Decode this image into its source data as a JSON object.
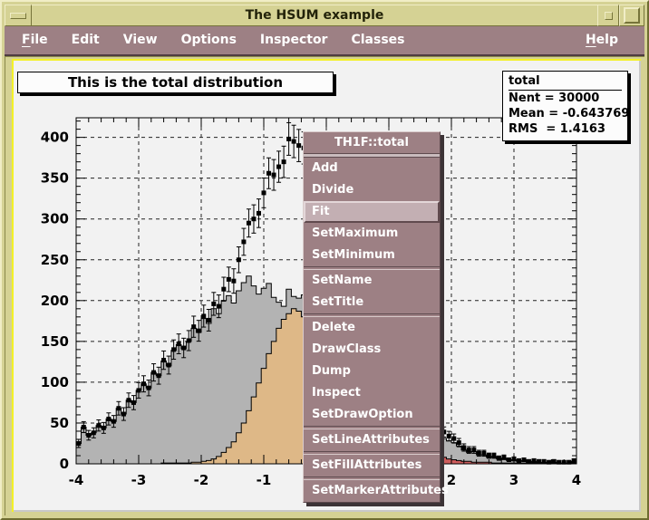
{
  "window": {
    "title": "The HSUM example",
    "controls": {
      "menu": "window-menu-dash",
      "iconify": "iconify-dot",
      "maximize": "maximize-square"
    }
  },
  "menubar": {
    "items": [
      {
        "label": "File",
        "mnemonic": 0
      },
      {
        "label": "Edit",
        "mnemonic": -1
      },
      {
        "label": "View",
        "mnemonic": -1
      },
      {
        "label": "Options",
        "mnemonic": -1
      },
      {
        "label": "Inspector",
        "mnemonic": -1
      },
      {
        "label": "Classes",
        "mnemonic": -1
      }
    ],
    "help": {
      "label": "Help",
      "mnemonic": 0
    }
  },
  "canvas": {
    "title_pave": "This is the total distribution",
    "stats": {
      "title": "total",
      "lines": [
        "Nent = 30000",
        "Mean = -0.643769",
        "RMS  = 1.4163"
      ]
    }
  },
  "context_menu": {
    "title": "TH1F::total",
    "items": [
      {
        "label": "Add"
      },
      {
        "label": "Divide"
      },
      {
        "label": "Fit",
        "state": "hover"
      },
      {
        "label": "SetMaximum"
      },
      {
        "label": "SetMinimum"
      },
      {
        "separator": true
      },
      {
        "label": "SetName"
      },
      {
        "label": "SetTitle"
      },
      {
        "separator": true
      },
      {
        "label": "Delete"
      },
      {
        "label": "DrawClass"
      },
      {
        "label": "Dump"
      },
      {
        "label": "Inspect"
      },
      {
        "label": "SetDrawOption"
      },
      {
        "separator": true
      },
      {
        "label": "SetLineAttributes"
      },
      {
        "separator": true
      },
      {
        "label": "SetFillAttributes"
      },
      {
        "separator": true
      },
      {
        "label": "SetMarkerAttributes"
      }
    ]
  },
  "chart_data": {
    "type": "bar",
    "variant": "step-histogram-overlay",
    "title": "This is the total distribution",
    "xlabel": "",
    "ylabel": "",
    "xlim": [
      -4,
      4
    ],
    "ylim": [
      0,
      424
    ],
    "bins": {
      "n": 100,
      "xmin": -4,
      "xmax": 4,
      "width": 0.08
    },
    "xticks": [
      -4,
      -3,
      -2,
      -1,
      0,
      1,
      2,
      3,
      4
    ],
    "yticks": [
      0,
      50,
      100,
      150,
      200,
      250,
      300,
      350,
      400
    ],
    "minor_tick_x": 0.2,
    "minor_tick_y": 10,
    "grid": "dashed",
    "series": [
      {
        "name": "main",
        "style": "filled",
        "color": "#b3b3b3",
        "values": [
          25,
          45,
          35,
          38,
          47,
          44,
          55,
          52,
          68,
          61,
          78,
          75,
          90,
          98,
          93,
          112,
          108,
          126,
          120,
          139,
          146,
          141,
          150,
          166,
          161,
          178,
          172,
          190,
          184,
          200,
          206,
          197,
          212,
          222,
          230,
          218,
          208,
          215,
          221,
          204,
          198,
          193,
          214,
          205,
          203,
          207,
          196,
          181,
          188,
          170,
          172,
          155,
          158,
          149,
          134,
          137,
          120,
          121,
          106,
          107,
          92,
          93,
          80,
          79,
          67,
          68,
          56,
          57,
          46,
          47,
          37,
          38,
          30,
          31,
          28,
          26,
          22,
          17,
          14,
          15,
          11,
          11,
          8,
          9,
          6,
          7,
          4,
          5,
          3,
          4,
          2,
          3,
          2,
          2,
          1,
          2,
          1,
          1,
          1,
          3
        ]
      },
      {
        "name": "s1",
        "style": "filled",
        "color": "#deb887",
        "values": [
          0,
          0,
          0,
          0,
          0,
          0,
          0,
          0,
          0,
          0,
          0,
          0,
          0,
          0,
          0,
          0,
          0,
          1,
          1,
          1,
          1,
          1,
          1,
          2,
          2,
          3,
          4,
          6,
          9,
          14,
          20,
          27,
          38,
          50,
          65,
          82,
          99,
          117,
          135,
          150,
          166,
          177,
          184,
          190,
          187,
          180,
          172,
          157,
          141,
          124,
          106,
          88,
          71,
          56,
          42,
          31,
          23,
          16,
          11,
          7,
          5,
          3,
          2,
          1,
          1,
          0,
          0,
          0,
          0,
          0,
          0,
          0,
          0,
          0,
          0,
          0,
          0,
          0,
          0,
          0,
          0,
          0,
          0,
          0,
          0,
          0,
          0,
          0,
          0,
          0,
          0,
          0,
          0,
          0,
          0,
          0,
          0,
          0,
          0,
          0
        ]
      },
      {
        "name": "s2",
        "style": "filled",
        "color": "#cd5c5c",
        "values": [
          0,
          0,
          0,
          0,
          0,
          0,
          0,
          0,
          0,
          0,
          0,
          0,
          0,
          0,
          0,
          0,
          0,
          0,
          0,
          0,
          0,
          0,
          0,
          0,
          0,
          0,
          0,
          0,
          0,
          0,
          0,
          0,
          0,
          0,
          0,
          0,
          0,
          0,
          0,
          0,
          0,
          0,
          0,
          0,
          0,
          0,
          0,
          0,
          0,
          0,
          0,
          0,
          0,
          0,
          0,
          0,
          0,
          1,
          2,
          5,
          15,
          60,
          150,
          170,
          128,
          92,
          62,
          44,
          32,
          24,
          19,
          15,
          11,
          8,
          6,
          5,
          4,
          3,
          3,
          2,
          2,
          2,
          2,
          1,
          1,
          1,
          1,
          1,
          1,
          1,
          1,
          1,
          1,
          1,
          1,
          1,
          1,
          1,
          1,
          1
        ]
      },
      {
        "name": "total",
        "style": "markers-errorbars",
        "color": "#000000",
        "marker": "filled-square",
        "derived": "sum of main + s1 + s2",
        "errors": "sqrt(value)"
      }
    ],
    "stats": {
      "name": "total",
      "entries": 30000,
      "mean": -0.643769,
      "rms": 1.4163
    }
  },
  "colors": {
    "frame_khaki": "#d5d294",
    "menubar_mauve": "#9d8084",
    "canvas_highlight": "#f3f127",
    "canvas_bg": "#f2f2f2",
    "hist_gray": "#b3b3b3",
    "hist_tan": "#deb887",
    "hist_red": "#cd5c5c"
  }
}
